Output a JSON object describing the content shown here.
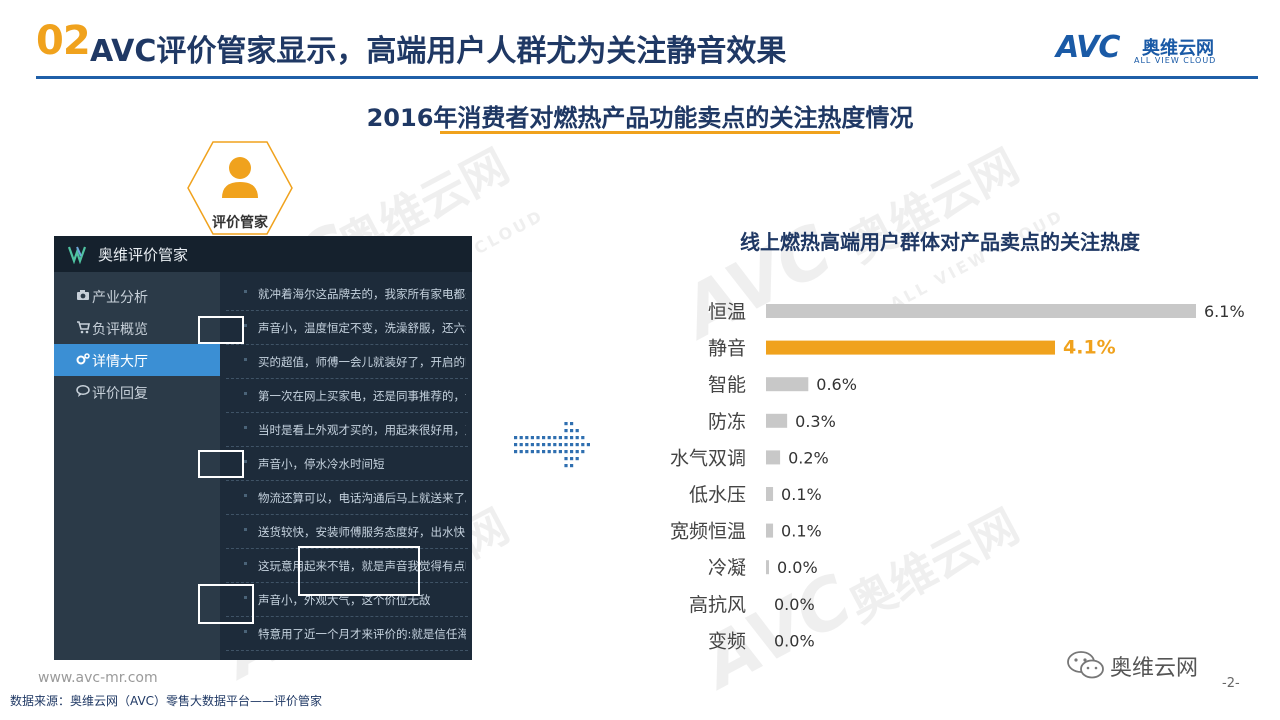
{
  "header": {
    "num": "02",
    "title": "AVC评价管家显示，高端用户人群尤为关注静音效果",
    "logo_avc": "AVC",
    "logo_cn": "奥维云网",
    "logo_en": "ALL VIEW CLOUD"
  },
  "subtitle": "2016年消费者对燃热产品功能卖点的关注热度情况",
  "watermark": {
    "big": "AVC",
    "cn": "奥维云网",
    "en": "ALL VIEW CLOUD"
  },
  "avatar": {
    "label": "评价管家"
  },
  "app": {
    "title": "奥维评价管家",
    "sidebar": [
      {
        "label": "产业分析",
        "icon": "camera-icon"
      },
      {
        "label": "负评概览",
        "icon": "cart-icon"
      },
      {
        "label": "详情大厅",
        "icon": "gears-icon",
        "active": true
      },
      {
        "label": "评价回复",
        "icon": "comment-icon"
      }
    ],
    "reviews": [
      "就冲着海尔这品牌去的，我家所有家电都是用的海尔...",
      "声音小，温度恒定不变，洗澡舒服，还六年免费包修...",
      "买的超值，师傅一会儿就装好了，开启的时候声音有...",
      "第一次在网上买家电，还是同事推荐的，说是质量跟...",
      "当时是看上外观才买的，用起来很好用，声音也很小...",
      "声音小，停水冷水时间短",
      "物流还算可以，电话沟通后马上就送来了。安装就坑...",
      "送货较快，安装师傅服务态度好，出水快，声音小，...",
      "这玩意用起来不错，就是声音我觉得有点吵，而且用...",
      "声音小，外观大气，这个价位无敌",
      "特意用了近一个月才来评价的:就是信任海尔品牌！这..."
    ]
  },
  "chart_data": {
    "type": "bar",
    "orientation": "horizontal",
    "title": "线上燃热高端用户群体对产品卖点的关注热度",
    "categories": [
      "恒温",
      "静音",
      "智能",
      "防冻",
      "水气双调",
      "低水压",
      "宽频恒温",
      "冷凝",
      "高抗风",
      "变频"
    ],
    "values": [
      6.1,
      4.1,
      0.6,
      0.3,
      0.2,
      0.1,
      0.1,
      0.0,
      0.0,
      0.0
    ],
    "value_labels": [
      "6.1%",
      "4.1%",
      "0.6%",
      "0.3%",
      "0.2%",
      "0.1%",
      "0.1%",
      "0.0%",
      "0.0%",
      "0.0%"
    ],
    "highlight_index": 1,
    "xlim": [
      0,
      6.1
    ],
    "grid": false,
    "colors": {
      "default": "#c8c8c8",
      "highlight": "#f0a21d",
      "highlight_label": "#f0a21d"
    }
  },
  "footer": {
    "url": "www.avc-mr.com",
    "source": "数据来源：奥维云网（AVC）零售大数据平台——评价管家",
    "wechat": "奥维云网",
    "page": "-2-"
  }
}
